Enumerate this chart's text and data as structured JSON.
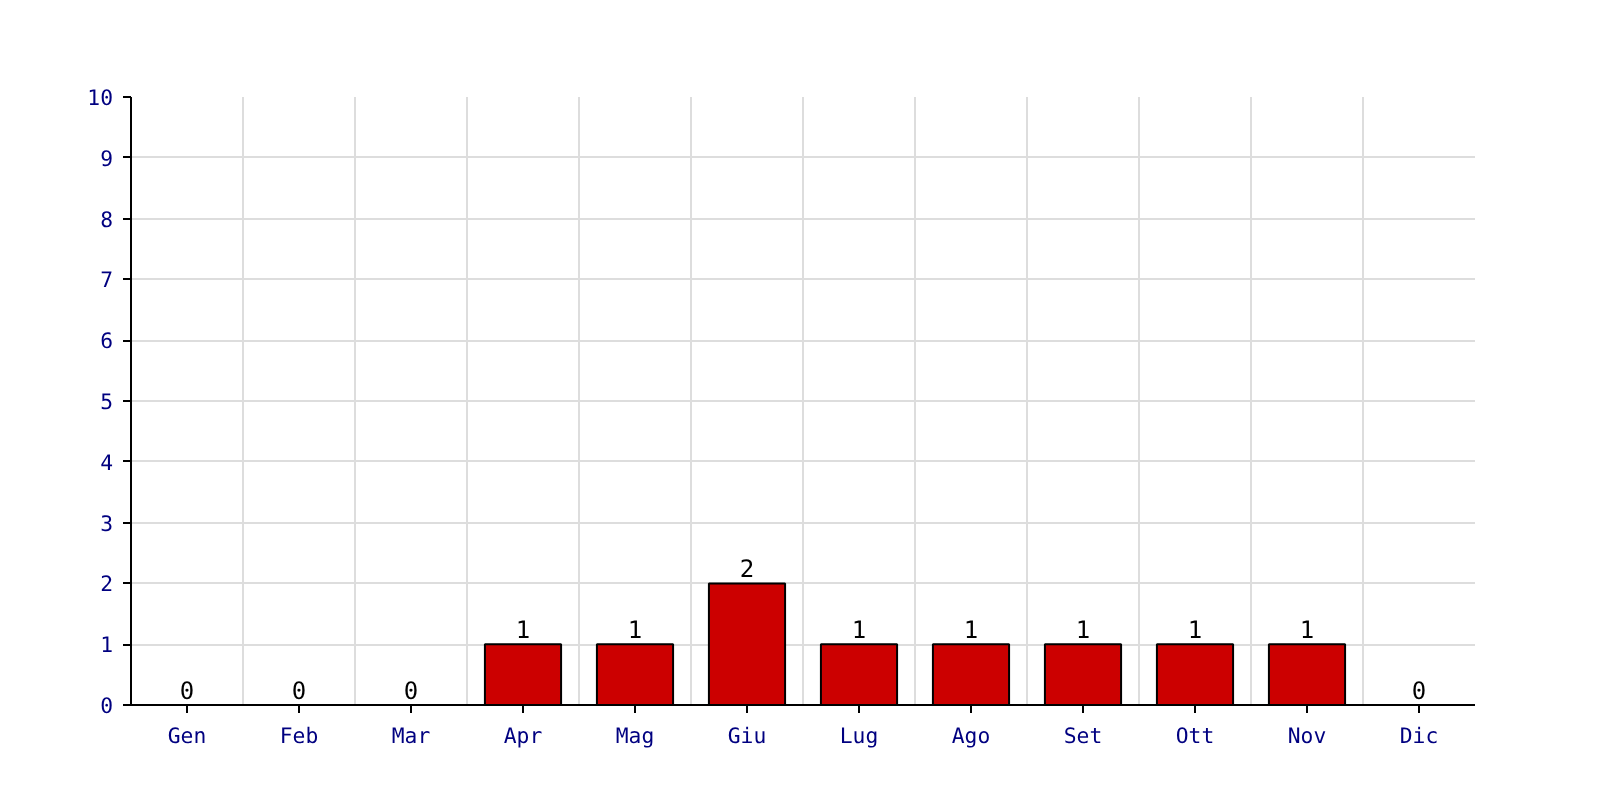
{
  "chart_data": {
    "type": "bar",
    "categories": [
      "Gen",
      "Feb",
      "Mar",
      "Apr",
      "Mag",
      "Giu",
      "Lug",
      "Ago",
      "Set",
      "Ott",
      "Nov",
      "Dic"
    ],
    "values": [
      0,
      0,
      0,
      1,
      1,
      2,
      1,
      1,
      1,
      1,
      1,
      0
    ],
    "color": "#cc0000",
    "ylim": [
      0,
      10
    ],
    "yticks": [
      0,
      1,
      2,
      3,
      4,
      5,
      6,
      7,
      8,
      9,
      10
    ],
    "grid": true,
    "data_labels": true
  }
}
